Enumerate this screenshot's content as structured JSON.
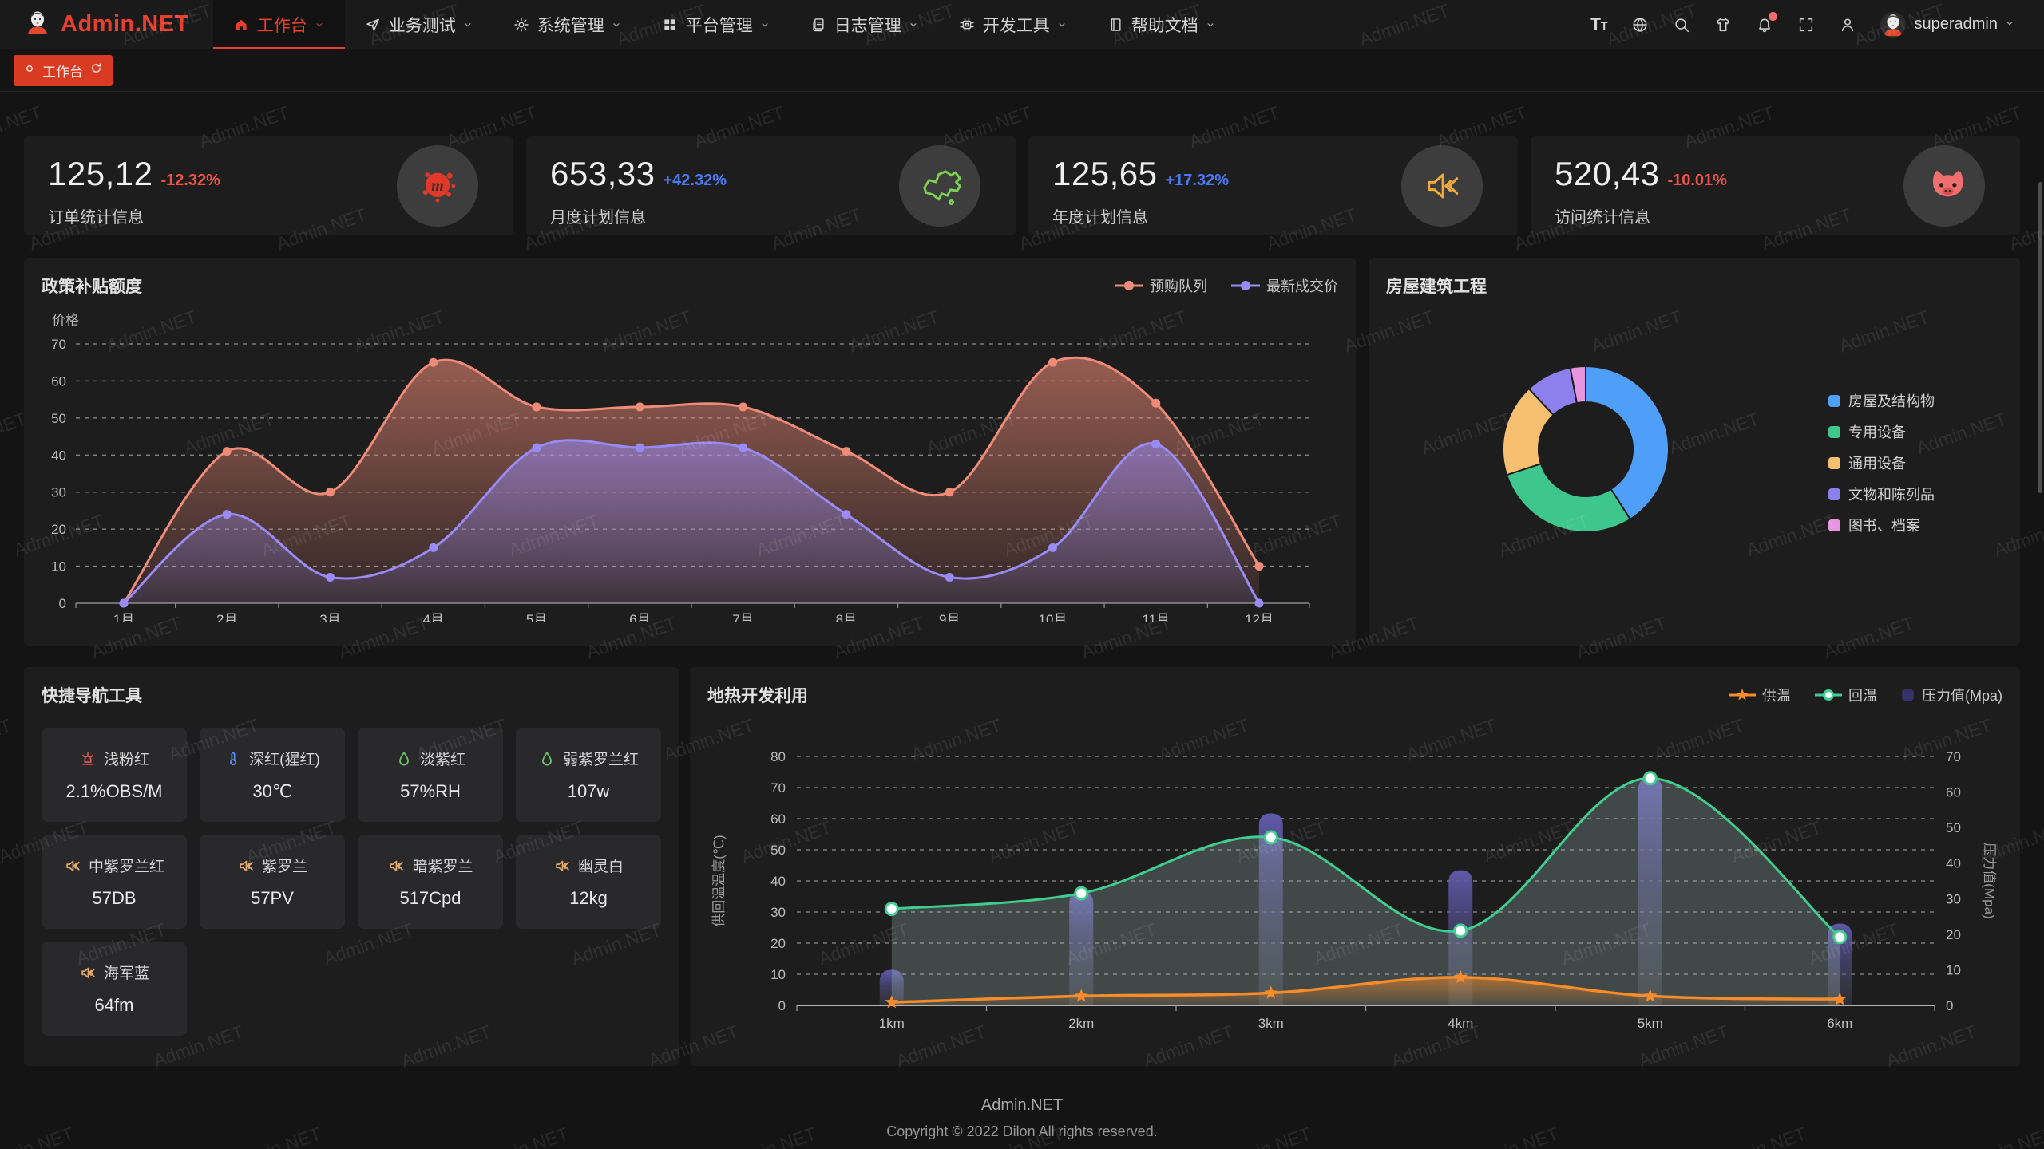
{
  "navbar": {
    "brand": "Admin.NET",
    "menu": [
      {
        "label": "工作台",
        "icon": "home-icon",
        "active": true
      },
      {
        "label": "业务测试",
        "icon": "send-icon",
        "active": false
      },
      {
        "label": "系统管理",
        "icon": "gear-icon",
        "active": false
      },
      {
        "label": "平台管理",
        "icon": "grid-icon",
        "active": false
      },
      {
        "label": "日志管理",
        "icon": "log-file-icon",
        "active": false
      },
      {
        "label": "开发工具",
        "icon": "cpu-icon",
        "active": false
      },
      {
        "label": "帮助文档",
        "icon": "book-icon",
        "active": false
      }
    ],
    "right": {
      "icons": [
        {
          "name": "font-size-icon",
          "badge": false
        },
        {
          "name": "language-icon",
          "badge": false
        },
        {
          "name": "search-icon",
          "badge": false
        },
        {
          "name": "theme-icon",
          "badge": false
        },
        {
          "name": "notification-icon",
          "badge": true
        },
        {
          "name": "fullscreen-icon",
          "badge": false
        },
        {
          "name": "profile-icon",
          "badge": false
        }
      ],
      "user": "superadmin"
    }
  },
  "tabbar": {
    "active_tab": "工作台"
  },
  "stat_cards": [
    {
      "value": "125,12",
      "delta": "-12.32%",
      "direction": "down",
      "label": "订单统计信息",
      "icon": "meetup-icon"
    },
    {
      "value": "653,33",
      "delta": "+42.32%",
      "direction": "up",
      "label": "月度计划信息",
      "icon": "china-map-icon"
    },
    {
      "value": "125,65",
      "delta": "+17.32%",
      "direction": "up",
      "label": "年度计划信息",
      "icon": "speaker-mute-icon"
    },
    {
      "value": "520,43",
      "delta": "-10.01%",
      "direction": "down",
      "label": "访问统计信息",
      "icon": "cat-icon"
    }
  ],
  "chart_data": [
    {
      "id": "subsidy",
      "type": "line",
      "title": "政策补贴额度",
      "y_axis_name": "价格",
      "categories": [
        "1月",
        "2月",
        "3月",
        "4月",
        "5月",
        "6月",
        "7月",
        "8月",
        "9月",
        "10月",
        "11月",
        "12月"
      ],
      "series": [
        {
          "name": "预购队列",
          "color": "#ef8b77",
          "values": [
            0,
            41,
            30,
            65,
            53,
            53,
            53,
            41,
            30,
            65,
            54,
            10
          ]
        },
        {
          "name": "最新成交价",
          "color": "#998bf5",
          "values": [
            0,
            24,
            7,
            15,
            42,
            42,
            42,
            24,
            7,
            15,
            43,
            0
          ]
        }
      ],
      "ylim": [
        0,
        70
      ],
      "y_ticks": [
        0,
        10,
        20,
        30,
        40,
        50,
        60,
        70
      ],
      "grid": "dashed",
      "legend_position": "top-right"
    },
    {
      "id": "building",
      "type": "pie",
      "title": "房屋建筑工程",
      "donut": true,
      "items": [
        {
          "name": "房屋及结构物",
          "value": 41,
          "color": "#4f9ef7"
        },
        {
          "name": "专用设备",
          "value": 29,
          "color": "#3dc78c"
        },
        {
          "name": "通用设备",
          "value": 18,
          "color": "#f7bf70"
        },
        {
          "name": "文物和陈列品",
          "value": 9,
          "color": "#8d7fec"
        },
        {
          "name": "图书、档案",
          "value": 3,
          "color": "#e795e1"
        }
      ],
      "legend_position": "right"
    },
    {
      "id": "geothermal",
      "type": "mixed",
      "title": "地热开发利用",
      "categories": [
        "1km",
        "2km",
        "3km",
        "4km",
        "5km",
        "6km"
      ],
      "left_axis": {
        "name": "供回温温度(℃)",
        "min": 0,
        "max": 80,
        "ticks": [
          0,
          10,
          20,
          30,
          40,
          50,
          60,
          70,
          80
        ]
      },
      "right_axis": {
        "name": "压力值(Mpa)",
        "min": 0,
        "max": 70,
        "ticks": [
          0,
          10,
          20,
          30,
          40,
          50,
          60,
          70
        ]
      },
      "series": [
        {
          "name": "供温",
          "type": "line",
          "marker": "star",
          "axis": "left",
          "color": "#fa8c29",
          "values": [
            1,
            3,
            4,
            9,
            3,
            2
          ]
        },
        {
          "name": "回温",
          "type": "line",
          "marker": "circle",
          "axis": "left",
          "color": "#3fce90",
          "values": [
            31,
            36,
            54,
            24,
            73,
            22
          ]
        },
        {
          "name": "压力值(Mpa)",
          "type": "bar",
          "marker": "rect",
          "axis": "right",
          "color": "#3c3570",
          "values": [
            10,
            32,
            54,
            38,
            64,
            23
          ]
        }
      ],
      "grid": "dashed",
      "legend_position": "top-right"
    }
  ],
  "quick_nav": {
    "title": "快捷导航工具",
    "items": [
      {
        "label": "浅粉红",
        "value": "2.1%OBS/M",
        "icon": "siren-icon",
        "icon_color": "#e25552"
      },
      {
        "label": "深红(猩红)",
        "value": "30℃",
        "icon": "thermometer-icon",
        "icon_color": "#5b8cf7"
      },
      {
        "label": "淡紫红",
        "value": "57%RH",
        "icon": "drop-icon",
        "icon_color": "#6fc56c"
      },
      {
        "label": "弱紫罗兰红",
        "value": "107w",
        "icon": "drop-icon",
        "icon_color": "#6fc56c"
      },
      {
        "label": "中紫罗兰红",
        "value": "57DB",
        "icon": "speaker-icon",
        "icon_color": "#e0a96a"
      },
      {
        "label": "紫罗兰",
        "value": "57PV",
        "icon": "speaker-icon",
        "icon_color": "#e0a96a"
      },
      {
        "label": "暗紫罗兰",
        "value": "517Cpd",
        "icon": "speaker-icon",
        "icon_color": "#e0a96a"
      },
      {
        "label": "幽灵白",
        "value": "12kg",
        "icon": "speaker-icon",
        "icon_color": "#e0a96a"
      },
      {
        "label": "海军蓝",
        "value": "64fm",
        "icon": "speaker-icon",
        "icon_color": "#e0a96a"
      }
    ]
  },
  "footer": {
    "line1": "Admin.NET",
    "line2": "Copyright © 2022 Dilon All rights reserved."
  },
  "watermark": {
    "text": "Admin.NET"
  },
  "colors": {
    "accent": "#e5402c",
    "positive": "#4a7af5",
    "negative": "#f15248",
    "card": "#1d1d1e"
  }
}
